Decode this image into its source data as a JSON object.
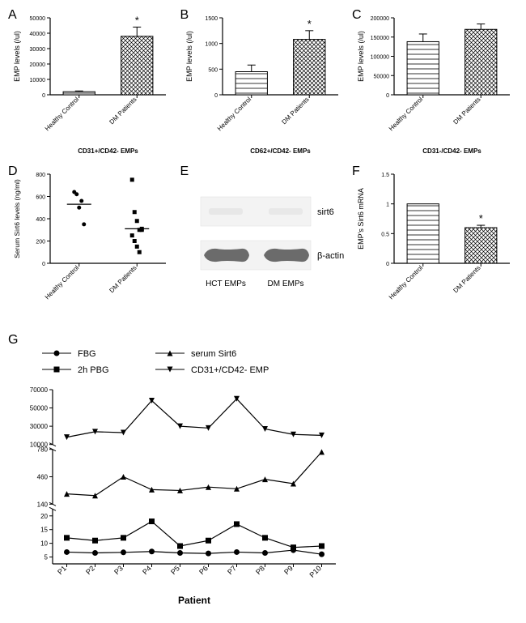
{
  "panelA": {
    "label": "A",
    "type": "bar",
    "ylabel": "EMP levels (/ul)",
    "xlabel": "CD31+/CD42- EMPs",
    "categories": [
      "Healthy Control",
      "DM Patients"
    ],
    "values": [
      2000,
      38000
    ],
    "errors": [
      500,
      6000
    ],
    "sig": [
      false,
      true
    ],
    "ylim": [
      0,
      50000
    ],
    "ytick_step": 10000,
    "ylabel_fontsize": 9,
    "xlabel_fontsize": 8,
    "tick_fontsize": 7,
    "bar_patterns": [
      "lines",
      "check"
    ],
    "bar_fill": "#ffffff",
    "bar_stroke": "#000000",
    "axis_color": "#000000",
    "background": "#ffffff"
  },
  "panelB": {
    "label": "B",
    "type": "bar",
    "ylabel": "EMP levels (/ul)",
    "xlabel": "CD62+/CD42- EMPs",
    "categories": [
      "Healthy Control",
      "DM Patients"
    ],
    "values": [
      450,
      1080
    ],
    "errors": [
      130,
      170
    ],
    "sig": [
      false,
      true
    ],
    "ylim": [
      0,
      1500
    ],
    "ytick_step": 500,
    "bar_patterns": [
      "lines",
      "check"
    ]
  },
  "panelC": {
    "label": "C",
    "type": "bar",
    "ylabel": "EMP levels (/ul)",
    "xlabel": "CD31-/CD42- EMPs",
    "categories": [
      "Healthy Control",
      "DM Patients"
    ],
    "values": [
      138000,
      170000
    ],
    "errors": [
      20000,
      14000
    ],
    "sig": [
      false,
      false
    ],
    "ylim": [
      0,
      200000
    ],
    "ytick_step": 50000,
    "bar_patterns": [
      "lines",
      "check"
    ]
  },
  "panelD": {
    "label": "D",
    "type": "scatter",
    "ylabel": "Serum Sirt6 levels (ng/ml)",
    "categories": [
      "Healthy Control",
      "DM Patients"
    ],
    "series": [
      {
        "x": 1,
        "points": [
          640,
          620,
          500,
          560,
          350
        ],
        "mean": 530,
        "marker": "circle"
      },
      {
        "x": 2,
        "points": [
          750,
          460,
          380,
          300,
          300,
          250,
          200,
          150,
          100,
          310
        ],
        "mean": 310,
        "marker": "square"
      }
    ],
    "ylim": [
      0,
      800
    ],
    "ytick_step": 200,
    "marker_fill": "#000000"
  },
  "panelE": {
    "label": "E",
    "type": "blot",
    "rows": [
      {
        "label": "sirt6",
        "bands": [
          {
            "intensity": 0.05
          },
          {
            "intensity": 0.02
          }
        ]
      },
      {
        "label": "β-actin",
        "bands": [
          {
            "intensity": 1.0
          },
          {
            "intensity": 1.0
          }
        ]
      }
    ],
    "lanes": [
      "HCT EMPs",
      "DM EMPs"
    ],
    "band_color": "#6b6b6b",
    "bg": "#f3f3f3",
    "label_fontsize": 11
  },
  "panelF": {
    "label": "F",
    "type": "bar",
    "ylabel": "EMP's Sirt6 mRNA",
    "categories": [
      "Healthy Control",
      "DM Patients"
    ],
    "values": [
      1.0,
      0.6
    ],
    "errors": [
      0.0,
      0.04
    ],
    "sig": [
      false,
      true
    ],
    "ylim": [
      0,
      1.5
    ],
    "ytick_step": 0.5,
    "bar_patterns": [
      "lines",
      "check"
    ]
  },
  "panelG": {
    "label": "G",
    "type": "line",
    "xlabel": "Patient",
    "categories": [
      "P1",
      "P2",
      "P3",
      "P4",
      "P5",
      "P6",
      "P7",
      "P8",
      "P9",
      "P10"
    ],
    "legend": [
      {
        "name": "FBG",
        "marker": "circle"
      },
      {
        "name": "serum Sirt6",
        "marker": "triangle-up"
      },
      {
        "name": "2h PBG",
        "marker": "square"
      },
      {
        "name": "CD31+/CD42- EMP",
        "marker": "triangle-down"
      }
    ],
    "segments": [
      {
        "ymin": 10000,
        "ymax": 70000,
        "ticks": [
          10000,
          30000,
          50000,
          70000
        ]
      },
      {
        "ymin": 140,
        "ymax": 780,
        "ticks": [
          140,
          460,
          780
        ]
      },
      {
        "ymin": 2.5,
        "ymax": 22.5,
        "ticks": [
          5,
          10,
          15,
          20
        ]
      }
    ],
    "series": {
      "FBG": [
        6.8,
        6.5,
        6.7,
        7.0,
        6.5,
        6.3,
        6.8,
        6.5,
        7.5,
        6.0
      ],
      "2h PBG": [
        12,
        11,
        12,
        18,
        9,
        11,
        17,
        12,
        8.5,
        9
      ],
      "serum Sirt6": [
        260,
        240,
        460,
        310,
        300,
        340,
        320,
        430,
        380,
        750
      ],
      "CD31_CD42_EMP": [
        18000,
        24000,
        23000,
        58000,
        30000,
        28000,
        60000,
        27000,
        21000,
        20000
      ]
    },
    "line_color": "#000000",
    "marker_fill": "#000000",
    "axis_color": "#000000",
    "label_fontsize": 11,
    "tick_fontsize": 9
  }
}
